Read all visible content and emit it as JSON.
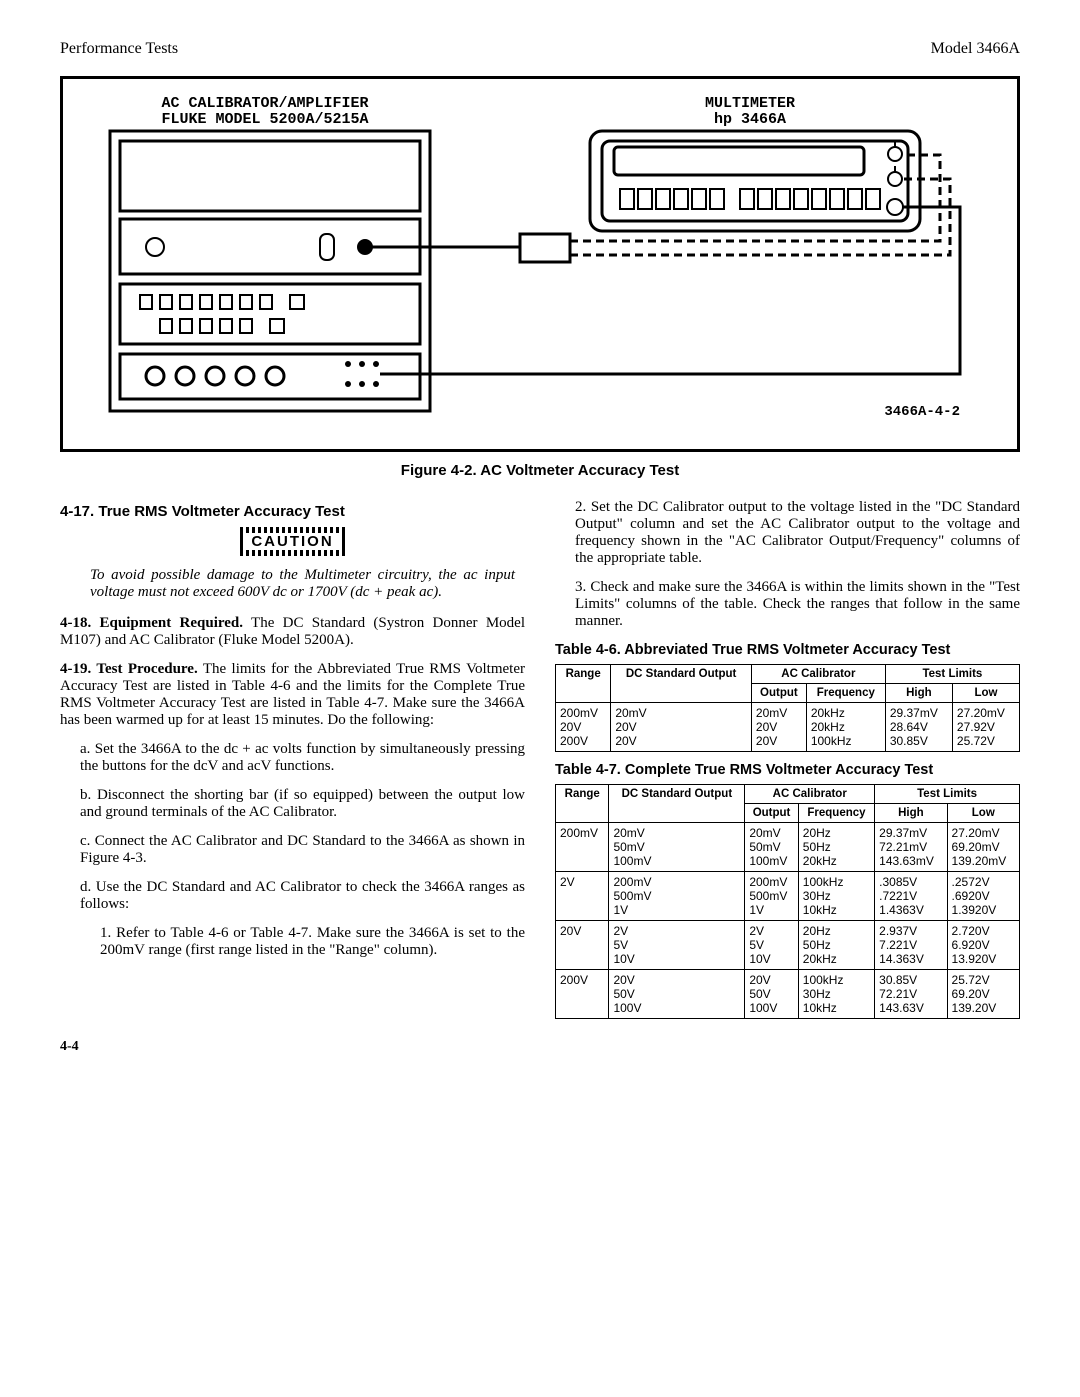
{
  "header": {
    "left": "Performance Tests",
    "right": "Model 3466A"
  },
  "figure": {
    "label_left1": "AC CALIBRATOR/AMPLIFIER",
    "label_left2": "FLUKE MODEL 5200A/5215A",
    "label_right1": "MULTIMETER",
    "label_right2": "hp 3466A",
    "corner_id": "3466A-4-2",
    "caption": "Figure 4-2. AC Voltmeter Accuracy Test"
  },
  "left_col": {
    "heading": "4-17. True RMS Voltmeter Accuracy Test",
    "caution_label": "CAUTION",
    "caution_text": "To avoid possible damage to the Multimeter circuitry, the ac input voltage must not exceed 600V dc or 1700V (dc + peak ac).",
    "p418_lead": "4-18. Equipment Required.",
    "p418_body": " The DC Standard (Systron Donner Model M107) and AC Calibrator (Fluke Model 5200A).",
    "p419_lead": "4-19. Test Procedure.",
    "p419_body": " The limits for the Abbreviated True RMS Voltmeter Accuracy Test are listed in Table 4-6 and the limits for the Complete True RMS Voltmeter Accuracy Test are listed in Table 4-7. Make sure the 3466A has been warmed up for at least 15 minutes. Do the following:",
    "step_a": "a. Set the 3466A to the dc + ac volts function by simultaneously pressing the buttons for the dcV and acV functions.",
    "step_b": "b. Disconnect the shorting bar (if so equipped) between the output low and ground terminals of the AC Calibrator.",
    "step_c": "c. Connect the AC Calibrator and DC Standard to the 3466A as shown in Figure 4-3.",
    "step_d": "d. Use the DC Standard and AC Calibrator to check the 3466A ranges as follows:",
    "step_d1": "1. Refer to Table 4-6 or Table 4-7. Make sure the 3466A is set to the 200mV range (first range listed in the \"Range\" column)."
  },
  "right_col": {
    "step_d2": "2. Set the DC Calibrator output to the voltage listed in the \"DC Standard Output\" column and set the AC Calibrator output to the voltage and frequency shown in the \"AC Calibrator Output/Frequency\" columns of the appropriate table.",
    "step_d3": "3. Check and make sure the 3466A is within the limits shown in the \"Test Limits\" columns of the table. Check the ranges that follow in the same manner."
  },
  "table46": {
    "caption": "Table 4-6. Abbreviated True RMS Voltmeter Accuracy Test",
    "headers": {
      "range": "Range",
      "dc": "DC Standard Output",
      "ac": "AC Calibrator",
      "ac_out": "Output",
      "ac_freq": "Frequency",
      "limits": "Test Limits",
      "high": "High",
      "low": "Low"
    },
    "rows": [
      {
        "range": "200mV",
        "dc": "20mV",
        "out": "20mV",
        "freq": "20kHz",
        "high": "29.37mV",
        "low": "27.20mV"
      },
      {
        "range": "20V",
        "dc": "20V",
        "out": "20V",
        "freq": "20kHz",
        "high": "28.64V",
        "low": "27.92V"
      },
      {
        "range": "200V",
        "dc": "20V",
        "out": "20V",
        "freq": "100kHz",
        "high": "30.85V",
        "low": "25.72V"
      }
    ]
  },
  "table47": {
    "caption": "Table 4-7. Complete True RMS Voltmeter Accuracy Test",
    "headers": {
      "range": "Range",
      "dc": "DC Standard Output",
      "ac": "AC Calibrator",
      "ac_out": "Output",
      "ac_freq": "Frequency",
      "limits": "Test Limits",
      "high": "High",
      "low": "Low"
    },
    "groups": [
      {
        "range": "200mV",
        "rows": [
          {
            "dc": "20mV",
            "out": "20mV",
            "freq": "20Hz",
            "high": "29.37mV",
            "low": "27.20mV"
          },
          {
            "dc": "50mV",
            "out": "50mV",
            "freq": "50Hz",
            "high": "72.21mV",
            "low": "69.20mV"
          },
          {
            "dc": "100mV",
            "out": "100mV",
            "freq": "20kHz",
            "high": "143.63mV",
            "low": "139.20mV"
          }
        ]
      },
      {
        "range": "2V",
        "rows": [
          {
            "dc": "200mV",
            "out": "200mV",
            "freq": "100kHz",
            "high": ".3085V",
            "low": ".2572V"
          },
          {
            "dc": "500mV",
            "out": "500mV",
            "freq": "30Hz",
            "high": ".7221V",
            "low": ".6920V"
          },
          {
            "dc": "1V",
            "out": "1V",
            "freq": "10kHz",
            "high": "1.4363V",
            "low": "1.3920V"
          }
        ]
      },
      {
        "range": "20V",
        "rows": [
          {
            "dc": "2V",
            "out": "2V",
            "freq": "20Hz",
            "high": "2.937V",
            "low": "2.720V"
          },
          {
            "dc": "5V",
            "out": "5V",
            "freq": "50Hz",
            "high": "7.221V",
            "low": "6.920V"
          },
          {
            "dc": "10V",
            "out": "10V",
            "freq": "20kHz",
            "high": "14.363V",
            "low": "13.920V"
          }
        ]
      },
      {
        "range": "200V",
        "rows": [
          {
            "dc": "20V",
            "out": "20V",
            "freq": "100kHz",
            "high": "30.85V",
            "low": "25.72V"
          },
          {
            "dc": "50V",
            "out": "50V",
            "freq": "30Hz",
            "high": "72.21V",
            "low": "69.20V"
          },
          {
            "dc": "100V",
            "out": "100V",
            "freq": "10kHz",
            "high": "143.63V",
            "low": "139.20V"
          }
        ]
      }
    ]
  },
  "footer": {
    "page": "4-4"
  }
}
